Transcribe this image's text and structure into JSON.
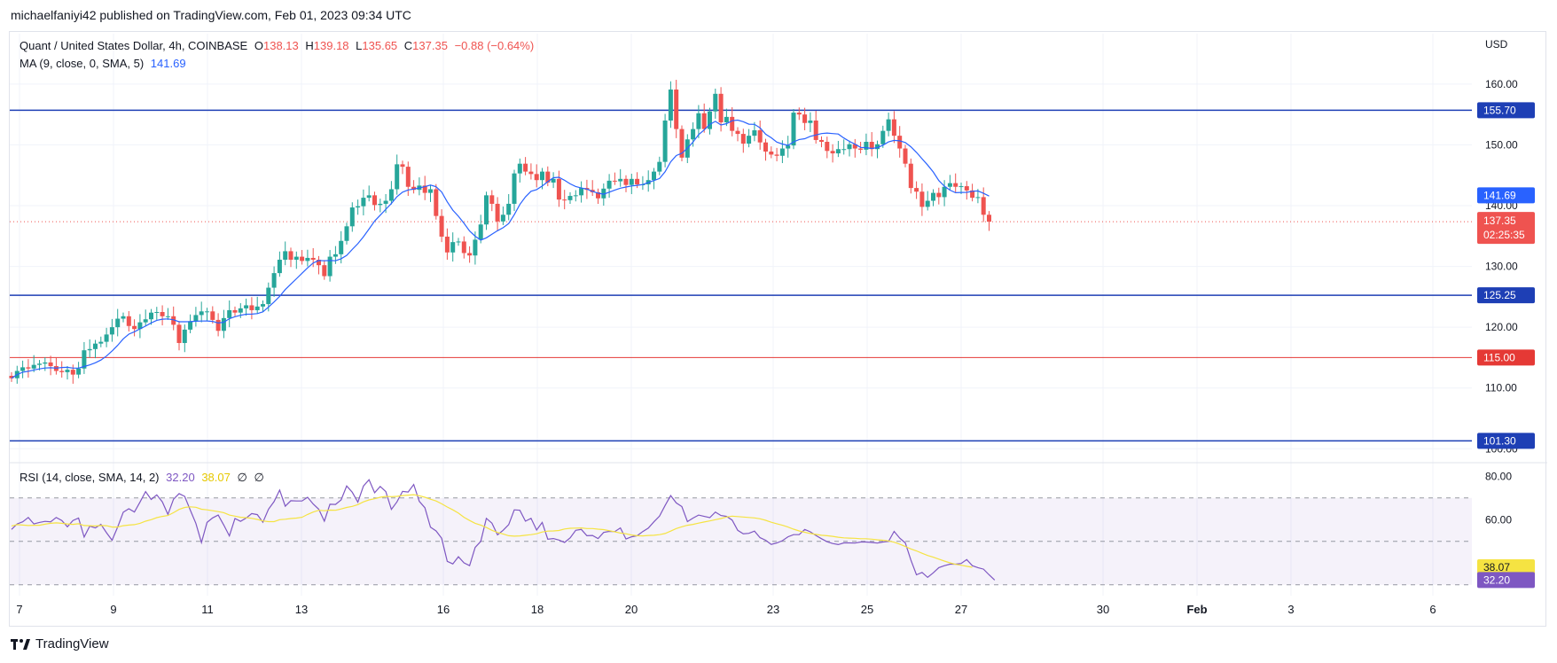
{
  "header": {
    "published_by": "michaelfaniyi42 published on TradingView.com, Feb 01, 2023 09:34 UTC"
  },
  "legend": {
    "symbol": "Quant / United States Dollar, 4h, COINBASE",
    "open_label": "O",
    "open": "138.13",
    "high_label": "H",
    "high": "139.18",
    "low_label": "L",
    "low": "135.65",
    "close_label": "C",
    "close": "137.35",
    "change": "−0.88 (−0.64%)",
    "ma_label": "MA (9, close, 0, SMA, 5)",
    "ma_value": "141.69",
    "rsi_label": "RSI (14, close, SMA, 14, 2)",
    "rsi_value": "32.20",
    "rsi_ma_value": "38.07",
    "rsi_extra1": "∅",
    "rsi_extra2": "∅"
  },
  "footer": {
    "brand": "TradingView",
    "logo_icon": "tradingview-logo-icon"
  },
  "colors": {
    "up": "#26a69a",
    "down": "#ef5350",
    "ma": "#2962ff",
    "rsi": "#7e57c2",
    "rsi_ma": "#f5e342",
    "hline_blue": "#1e3fb5",
    "hline_red": "#e53935"
  },
  "chart_data": {
    "type": "candlestick",
    "currency_label": "USD",
    "timeframe": "4h",
    "x_ticks": [
      "7",
      "9",
      "11",
      "13",
      "16",
      "18",
      "20",
      "23",
      "25",
      "27",
      "30",
      "Feb",
      "3",
      "6"
    ],
    "price_ticks": [
      "160.00",
      "150.00",
      "140.00",
      "130.00",
      "120.00",
      "110.00",
      "100.00"
    ],
    "price_range": [
      98,
      168
    ],
    "horizontal_levels": [
      {
        "value": 155.7,
        "label": "155.70",
        "color": "blue"
      },
      {
        "value": 125.25,
        "label": "125.25",
        "color": "blue"
      },
      {
        "value": 115.0,
        "label": "115.00",
        "color": "red"
      },
      {
        "value": 101.3,
        "label": "101.30",
        "color": "blue"
      }
    ],
    "current_price": {
      "value": 137.35,
      "label": "137.35",
      "countdown": "02:25:35"
    },
    "ma_last": {
      "value": 141.69,
      "label": "141.69"
    },
    "close_series": [
      111.6,
      112.8,
      113.4,
      113.2,
      113.8,
      114,
      114.2,
      113.6,
      112.8,
      112.6,
      113,
      112.2,
      113.2,
      116.2,
      116.4,
      117.3,
      117.6,
      118.8,
      120,
      121.4,
      121.8,
      120.2,
      119.7,
      120.8,
      121.3,
      122.4,
      122.5,
      121.8,
      121.8,
      120.4,
      117.4,
      119.6,
      121,
      122,
      122.6,
      122.6,
      121.2,
      119.4,
      121.5,
      122.8,
      122.4,
      123.1,
      123.6,
      122.8,
      123.4,
      123.8,
      126.5,
      128.9,
      131.1,
      132.5,
      131.1,
      131.6,
      130.9,
      131.4,
      131.1,
      130.2,
      128.4,
      131.6,
      132,
      134.2,
      136.6,
      139.7,
      139.9,
      141.3,
      141.7,
      140.1,
      140.3,
      140.8,
      142.7,
      146.8,
      146.4,
      143.1,
      142.6,
      143.3,
      142.1,
      142.7,
      138.3,
      134.9,
      132.3,
      134,
      134.1,
      132.2,
      131.8,
      134.4,
      136.9,
      141.7,
      140.3,
      137.4,
      138.5,
      140.3,
      145.3,
      146.9,
      145.6,
      145.2,
      144.2,
      145.6,
      143.8,
      144.4,
      141,
      140.9,
      141.6,
      141.7,
      142.9,
      142.6,
      142.2,
      141.2,
      142.8,
      144.1,
      144,
      144.4,
      143.4,
      144.4,
      143.5,
      143.5,
      144.2,
      145.6,
      147.2,
      154,
      159.1,
      152.6,
      147.9,
      150.9,
      152.6,
      155.2,
      152.6,
      155.5,
      158.4,
      153.7,
      154.6,
      152.3,
      151.8,
      150.2,
      151.5,
      152.4,
      150.4,
      148.9,
      148.4,
      148.2,
      149.4,
      149.9,
      155.3,
      155,
      153.6,
      154,
      150.8,
      150.5,
      149,
      148.6,
      149.3,
      149.3,
      150.1,
      149.4,
      149.2,
      150.5,
      149.3,
      150.1,
      152.3,
      154.2,
      151.5,
      149.4,
      146.9,
      142.9,
      142.3,
      139.8,
      140.8,
      142.1,
      141.4,
      143.1,
      143.7,
      143.1,
      143.2,
      142.5,
      141.3,
      141.4,
      138.5,
      137.35
    ],
    "rsi_range": [
      25,
      85
    ],
    "rsi_ticks": [
      "80.00",
      "60.00"
    ],
    "rsi_band": {
      "upper": 70,
      "middle": 50,
      "lower": 30
    },
    "rsi_series": [
      {
        "name": "RSI",
        "value_label": "32.20",
        "values": [
          55.5,
          58,
          59,
          61,
          58,
          58.7,
          59.2,
          59,
          61,
          59.6,
          56.7,
          59.6,
          60.7,
          52,
          57,
          56.2,
          57.8,
          54,
          50.5,
          56.6,
          63.4,
          65,
          63.5,
          68.1,
          72.9,
          69.3,
          71.4,
          68.2,
          62.4,
          69.4,
          72,
          70.7,
          64.4,
          58.3,
          49.4,
          58.7,
          60.8,
          62.1,
          57.5,
          52.5,
          60.5,
          59.2,
          60.7,
          62.8,
          62.3,
          58.8,
          64.8,
          68.3,
          73.6,
          66.2,
          68.7,
          68.6,
          68.6,
          70.3,
          67.2,
          64.8,
          59.3,
          67.1,
          67,
          69.1,
          75.5,
          72.6,
          68,
          75.5,
          78.4,
          72.4,
          75.3,
          72.9,
          64.7,
          68.2,
          73,
          72.7,
          76.2,
          68.4,
          65.5,
          56.5,
          54.8,
          51.4,
          40.8,
          39.6,
          42.9,
          40.1,
          38.8,
          47.2,
          50,
          60.6,
          58.4,
          53,
          55.1,
          57.7,
          64.5,
          64.3,
          59.3,
          60.6,
          55.2,
          58.7,
          51,
          51.3,
          50.6,
          49.5,
          51.6,
          55.1,
          55.5,
          52.6,
          52.7,
          51.3,
          54.1,
          54.6,
          54.5,
          56.2,
          51.1,
          52.1,
          52.6,
          54.5,
          56.1,
          59,
          61.6,
          66.5,
          71.1,
          67.7,
          66,
          59.1,
          60.7,
          62.1,
          61.5,
          60.9,
          63.5,
          61.9,
          61.5,
          59.8,
          55.1,
          53.5,
          53.7,
          54.7,
          51.7,
          50.5,
          48.6,
          49.3,
          50.3,
          52.1,
          53.1,
          53.1,
          55.5,
          54.4,
          52.7,
          51.2,
          49.8,
          49,
          48.5,
          49.3,
          49.3,
          49.2,
          49.7,
          49.7,
          49.5,
          49.2,
          49.7,
          50,
          54.6,
          51.5,
          49.3,
          41.4,
          34.6,
          35.7,
          33.4,
          35.5,
          37.9,
          38.8,
          39.5,
          39.5,
          39.8,
          41.6,
          38.8,
          37.9,
          37.2,
          34.6,
          32.2
        ]
      },
      {
        "name": "RSI MA",
        "value_label": "38.07",
        "values": [
          57.1,
          57.7,
          57.5,
          57.3,
          57.4,
          57.4,
          57.9,
          58.3,
          58.5,
          58.3,
          58,
          57.8,
          58.1,
          57.3,
          57.2,
          57.1,
          57.3,
          57.2,
          56.6,
          56.6,
          57.2,
          57.5,
          57.7,
          58.3,
          59.3,
          60,
          60.9,
          61.5,
          61.9,
          63.2,
          64.7,
          65.6,
          65.9,
          65.7,
          64.8,
          64.5,
          64.1,
          63.7,
          63.2,
          62.1,
          61.6,
          61.1,
          60.9,
          60.6,
          60.1,
          59.4,
          59.1,
          59.1,
          60,
          60.2,
          60.5,
          60.7,
          61.1,
          62.4,
          63.5,
          64.3,
          64.1,
          64.4,
          64.3,
          64.9,
          65.6,
          66.1,
          66.9,
          68.2,
          69.1,
          69.6,
          70.3,
          70.7,
          70.6,
          70.7,
          71.1,
          71.3,
          71.5,
          71,
          70.3,
          69.4,
          68.6,
          67.3,
          65.8,
          64.5,
          63,
          61.1,
          59.6,
          58.3,
          57.5,
          56.4,
          55.1,
          54.1,
          53.4,
          52.6,
          52.4,
          52.5,
          52.8,
          53.1,
          53.5,
          54.3,
          54.7,
          54.8,
          55,
          55.7,
          56,
          56.1,
          56.2,
          55.9,
          55.9,
          55.6,
          55.4,
          54.9,
          54.4,
          53.8,
          53.5,
          52.9,
          52.6,
          52.5,
          52.7,
          52.8,
          53.1,
          53.6,
          54.7,
          55.9,
          56.7,
          57.4,
          57.8,
          58.4,
          58.9,
          59.4,
          60,
          60.5,
          61.2,
          61.6,
          61.4,
          61.2,
          61,
          60.8,
          60.4,
          59.7,
          58.8,
          58.1,
          57.4,
          56.6,
          55.6,
          54.8,
          54.2,
          53.6,
          53.2,
          52.8,
          52.6,
          52.3,
          51.9,
          51.6,
          51.5,
          51.4,
          51.2,
          51.2,
          51,
          50.7,
          50.5,
          50.2,
          49.6,
          48.7,
          47.6,
          46.5,
          45.6,
          44.5,
          43.5,
          42.7,
          41.8,
          40.9,
          40.1,
          39.4,
          39,
          38.5,
          38.07
        ]
      }
    ]
  }
}
